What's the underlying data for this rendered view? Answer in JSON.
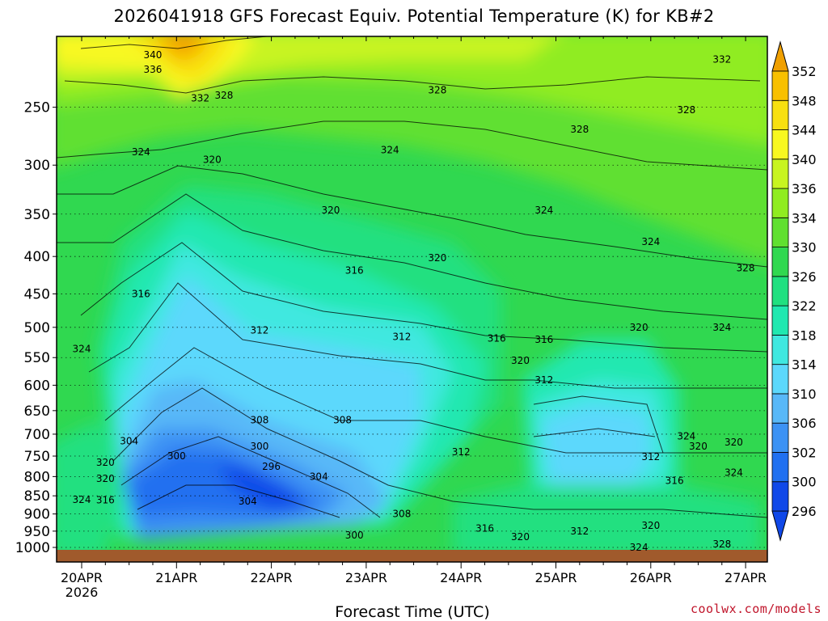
{
  "title": "2026041918 GFS Forecast Equiv. Potential Temperature (K) for KB#2",
  "credit": "coolwx.com/models",
  "chart_data": {
    "type": "heatmap",
    "title": "2026041918 GFS Forecast Equiv. Potential Temperature (K) for KB#2",
    "xlabel": "Forecast Time (UTC)",
    "ylabel": "",
    "x_ticks": [
      "20APR",
      "21APR",
      "22APR",
      "23APR",
      "24APR",
      "25APR",
      "26APR",
      "27APR"
    ],
    "x_year_label": "2026",
    "y_ticks": [
      250,
      300,
      350,
      400,
      450,
      500,
      550,
      600,
      650,
      700,
      750,
      800,
      850,
      900,
      950,
      1000
    ],
    "y_scale": "log",
    "y_reversed": true,
    "colorbar": {
      "levels": [
        296,
        300,
        302,
        306,
        310,
        314,
        318,
        322,
        326,
        330,
        334,
        336,
        340,
        344,
        348,
        352
      ],
      "colors": [
        "#1048e8",
        "#2070f0",
        "#3c92f4",
        "#58b8f8",
        "#5cd8fc",
        "#40e8e0",
        "#20e8b0",
        "#20e080",
        "#30d850",
        "#60e030",
        "#90ec20",
        "#c8f420",
        "#f8f820",
        "#f8e010",
        "#f8c000",
        "#f0a000"
      ]
    },
    "contour_labels": [
      {
        "value": 340,
        "time": "20APR18",
        "pressure": 212
      },
      {
        "value": 336,
        "time": "20APR18",
        "pressure": 222
      },
      {
        "value": 332,
        "time": "21APR06",
        "pressure": 243
      },
      {
        "value": 328,
        "time": "21APR12",
        "pressure": 241
      },
      {
        "value": 332,
        "time": "26APR18",
        "pressure": 215
      },
      {
        "value": 328,
        "time": "23APR18",
        "pressure": 237
      },
      {
        "value": 328,
        "time": "26APR09",
        "pressure": 252
      },
      {
        "value": 328,
        "time": "25APR06",
        "pressure": 268
      },
      {
        "value": 324,
        "time": "20APR15",
        "pressure": 288
      },
      {
        "value": 320,
        "time": "21APR09",
        "pressure": 295
      },
      {
        "value": 324,
        "time": "23APR06",
        "pressure": 286
      },
      {
        "value": 320,
        "time": "22APR15",
        "pressure": 346
      },
      {
        "value": 324,
        "time": "24APR21",
        "pressure": 346
      },
      {
        "value": 324,
        "time": "26APR00",
        "pressure": 382
      },
      {
        "value": 320,
        "time": "23APR18",
        "pressure": 402
      },
      {
        "value": 328,
        "time": "27APR00",
        "pressure": 415
      },
      {
        "value": 316,
        "time": "22APR21",
        "pressure": 418
      },
      {
        "value": 316,
        "time": "20APR15",
        "pressure": 450
      },
      {
        "value": 312,
        "time": "21APR21",
        "pressure": 505
      },
      {
        "value": 312,
        "time": "23APR09",
        "pressure": 515
      },
      {
        "value": 316,
        "time": "24APR09",
        "pressure": 518
      },
      {
        "value": 316,
        "time": "24APR21",
        "pressure": 520
      },
      {
        "value": 320,
        "time": "25APR21",
        "pressure": 500
      },
      {
        "value": 324,
        "time": "26APR18",
        "pressure": 500
      },
      {
        "value": 324,
        "time": "20APR00",
        "pressure": 535
      },
      {
        "value": 320,
        "time": "24APR15",
        "pressure": 555
      },
      {
        "value": 312,
        "time": "24APR21",
        "pressure": 590
      },
      {
        "value": 308,
        "time": "21APR21",
        "pressure": 670
      },
      {
        "value": 308,
        "time": "22APR18",
        "pressure": 670
      },
      {
        "value": 304,
        "time": "20APR12",
        "pressure": 715
      },
      {
        "value": 300,
        "time": "21APR21",
        "pressure": 727
      },
      {
        "value": 324,
        "time": "26APR09",
        "pressure": 705
      },
      {
        "value": 320,
        "time": "26APR12",
        "pressure": 727
      },
      {
        "value": 320,
        "time": "26APR21",
        "pressure": 718
      },
      {
        "value": 300,
        "time": "21APR00",
        "pressure": 750
      },
      {
        "value": 312,
        "time": "24APR00",
        "pressure": 740
      },
      {
        "value": 312,
        "time": "26APR00",
        "pressure": 752
      },
      {
        "value": 320,
        "time": "20APR06",
        "pressure": 765
      },
      {
        "value": 296,
        "time": "22APR00",
        "pressure": 775
      },
      {
        "value": 304,
        "time": "22APR12",
        "pressure": 800
      },
      {
        "value": 320,
        "time": "20APR06",
        "pressure": 805
      },
      {
        "value": 324,
        "time": "26APR21",
        "pressure": 790
      },
      {
        "value": 316,
        "time": "26APR06",
        "pressure": 810
      },
      {
        "value": 324,
        "time": "20APR00",
        "pressure": 860
      },
      {
        "value": 316,
        "time": "20APR06",
        "pressure": 862
      },
      {
        "value": 304,
        "time": "21APR18",
        "pressure": 865
      },
      {
        "value": 308,
        "time": "23APR09",
        "pressure": 900
      },
      {
        "value": 316,
        "time": "24APR06",
        "pressure": 942
      },
      {
        "value": 312,
        "time": "25APR06",
        "pressure": 950
      },
      {
        "value": 320,
        "time": "26APR00",
        "pressure": 933
      },
      {
        "value": 300,
        "time": "22APR21",
        "pressure": 962
      },
      {
        "value": 320,
        "time": "24APR15",
        "pressure": 968
      },
      {
        "value": 324,
        "time": "25APR21",
        "pressure": 1000
      },
      {
        "value": 328,
        "time": "26APR18",
        "pressure": 990
      }
    ]
  }
}
